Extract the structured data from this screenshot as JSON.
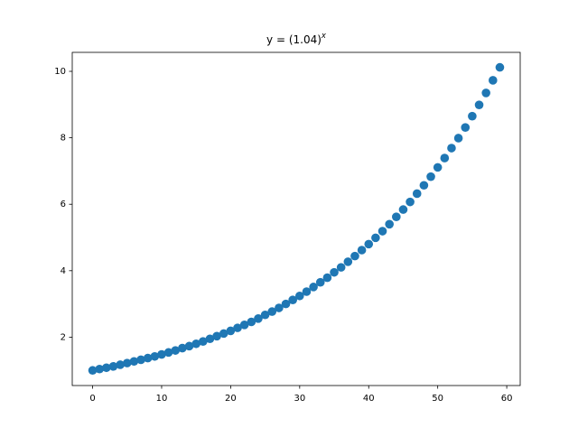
{
  "chart_data": {
    "type": "scatter",
    "title": "y = (1.04)^x",
    "color": "#1f77b4",
    "x": [
      0,
      1,
      2,
      3,
      4,
      5,
      6,
      7,
      8,
      9,
      10,
      11,
      12,
      13,
      14,
      15,
      16,
      17,
      18,
      19,
      20,
      21,
      22,
      23,
      24,
      25,
      26,
      27,
      28,
      29,
      30,
      31,
      32,
      33,
      34,
      35,
      36,
      37,
      38,
      39,
      40,
      41,
      42,
      43,
      44,
      45,
      46,
      47,
      48,
      49,
      50,
      51,
      52,
      53,
      54,
      55,
      56,
      57,
      58,
      59
    ],
    "values": [
      1,
      1.04,
      1.08,
      1.12,
      1.17,
      1.22,
      1.27,
      1.32,
      1.37,
      1.42,
      1.48,
      1.54,
      1.6,
      1.67,
      1.73,
      1.8,
      1.87,
      1.95,
      2.03,
      2.11,
      2.19,
      2.28,
      2.37,
      2.46,
      2.56,
      2.67,
      2.77,
      2.88,
      3.0,
      3.12,
      3.24,
      3.37,
      3.51,
      3.65,
      3.79,
      3.95,
      4.1,
      4.27,
      4.44,
      4.62,
      4.8,
      4.99,
      5.19,
      5.4,
      5.62,
      5.84,
      6.07,
      6.32,
      6.57,
      6.83,
      7.11,
      7.39,
      7.69,
      7.99,
      8.31,
      8.65,
      8.99,
      9.35,
      9.73,
      10.12
    ],
    "xlim": [
      -2.95,
      61.95
    ],
    "xticks": [
      0,
      10,
      20,
      30,
      40,
      50,
      60
    ],
    "ylim": [
      0.544,
      10.571
    ],
    "yticks": [
      2,
      4,
      6,
      8,
      10
    ],
    "grid": false
  }
}
